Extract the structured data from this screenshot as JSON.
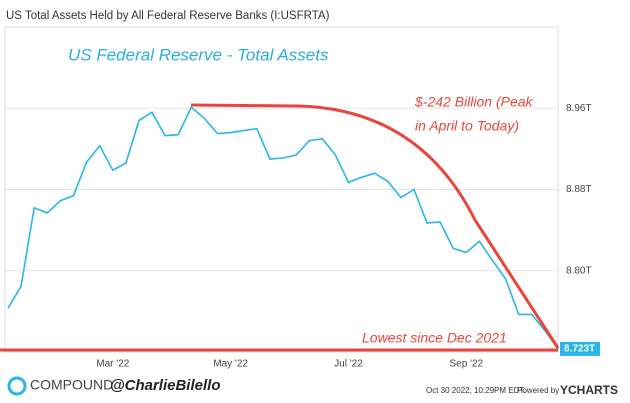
{
  "chart_data": {
    "type": "line",
    "title": "US Total Assets Held by All Federal Reserve Banks (I:USFRTA)",
    "annotations": [
      "US Federal Reserve - Total Assets",
      "$-242 Billion (Peak",
      "in April to Today)",
      "Lowest since Dec 2021"
    ],
    "categories": [
      null,
      null,
      null,
      null,
      null,
      null,
      null,
      null,
      "Mar '22",
      null,
      null,
      null,
      null,
      null,
      null,
      null,
      null,
      "May '22",
      null,
      null,
      null,
      null,
      null,
      null,
      null,
      null,
      "Jul '22",
      null,
      null,
      null,
      null,
      null,
      null,
      null,
      null,
      "Sep '22",
      null,
      null,
      null,
      null,
      null,
      null,
      null
    ],
    "series": [
      {
        "name": "US Total Assets Held by All Federal Reserve Banks",
        "color": "#29b5e8",
        "values": [
          8.763,
          8.785,
          8.862,
          8.857,
          8.869,
          8.874,
          8.907,
          8.923,
          8.899,
          8.906,
          8.948,
          8.956,
          8.933,
          8.934,
          8.961,
          8.95,
          8.935,
          8.936,
          8.938,
          8.94,
          8.91,
          8.911,
          8.914,
          8.928,
          8.93,
          8.914,
          8.887,
          8.892,
          8.896,
          8.888,
          8.872,
          8.88,
          8.847,
          8.848,
          8.822,
          8.818,
          8.829,
          8.81,
          8.792,
          8.757,
          8.757,
          8.741,
          8.723
        ],
        "value_labels": [
          null,
          null,
          null,
          null,
          null,
          null,
          null,
          null,
          null,
          null,
          null,
          null,
          null,
          null,
          null,
          null,
          null,
          null,
          null,
          null,
          null,
          null,
          null,
          null,
          null,
          null,
          null,
          null,
          null,
          null,
          null,
          null,
          null,
          null,
          null,
          null,
          null,
          null,
          null,
          null,
          null,
          null,
          "8.723T"
        ]
      }
    ],
    "ylim": [
      8.72,
      9.04
    ],
    "yticks": [
      {
        "value": 8.8,
        "label": "8.80T"
      },
      {
        "value": 8.88,
        "label": "8.88T"
      },
      {
        "value": 8.96,
        "label": "8.96T"
      }
    ],
    "grid": true
  },
  "footer": {
    "brand": "COMPOUND",
    "handle": "@CharlieBilello",
    "timestamp": "Oct 30 2022, 10:29PM EDT.",
    "powered": "Powered by",
    "provider": "YCHARTS"
  }
}
